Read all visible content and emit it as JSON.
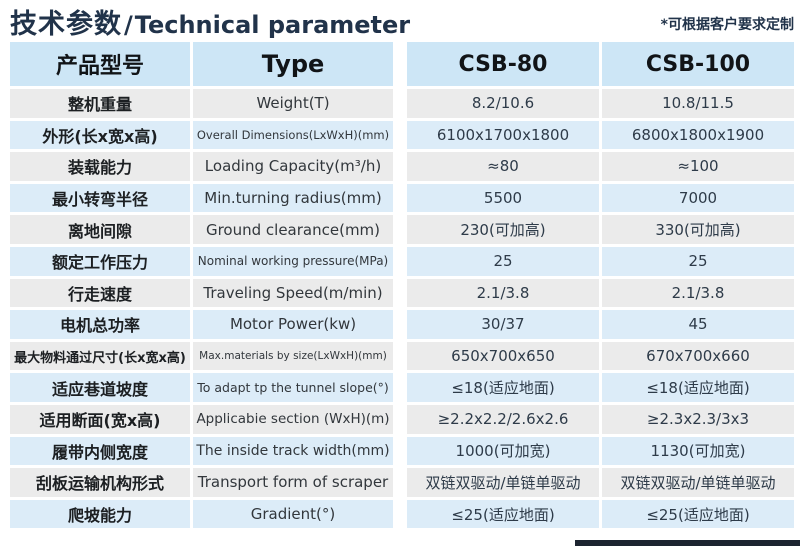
{
  "title": {
    "zh": "技术参数",
    "sep": "/",
    "en": "Technical parameter"
  },
  "note": "*可根据客户要求定制",
  "table": {
    "header": {
      "model_zh": "产品型号",
      "type": "Type",
      "model_a": "CSB-80",
      "model_b": "CSB-100"
    },
    "rows": [
      {
        "zh": "整机重量",
        "en": "Weight(T)",
        "csb80": "8.2/10.6",
        "csb100": "10.8/11.5"
      },
      {
        "zh": "外形(长x宽x高)",
        "en": "Overall Dimensions(LxWxH)(mm)",
        "csb80": "6100x1700x1800",
        "csb100": "6800x1800x1900"
      },
      {
        "zh": "装载能力",
        "en": "Loading Capacity(m³/h)",
        "csb80": "≈80",
        "csb100": "≈100"
      },
      {
        "zh": "最小转弯半径",
        "en": "Min.turning radius(mm)",
        "csb80": "5500",
        "csb100": "7000"
      },
      {
        "zh": "离地间隙",
        "en": "Ground clearance(mm)",
        "csb80": "230(可加高)",
        "csb100": "330(可加高)"
      },
      {
        "zh": "额定工作压力",
        "en": "Nominal working pressure(MPa)",
        "csb80": "25",
        "csb100": "25"
      },
      {
        "zh": "行走速度",
        "en": "Traveling Speed(m/min)",
        "csb80": "2.1/3.8",
        "csb100": "2.1/3.8"
      },
      {
        "zh": "电机总功率",
        "en": "Motor Power(kw)",
        "csb80": "30/37",
        "csb100": "45"
      },
      {
        "zh": "最大物料通过尺寸(长x宽x高)",
        "en": "Max.materials by size(LxWxH)(mm)",
        "csb80": "650x700x650",
        "csb100": "670x700x660"
      },
      {
        "zh": "适应巷道坡度",
        "en": "To adapt tp the tunnel slope(°)",
        "csb80": "≤18(适应地面)",
        "csb100": "≤18(适应地面)"
      },
      {
        "zh": "适用断面(宽x高)",
        "en": "Applicabie section (WxH)(m)",
        "csb80": "≥2.2x2.2/2.6x2.6",
        "csb100": "≥2.3x2.3/3x3"
      },
      {
        "zh": "履带内侧宽度",
        "en": "The inside track width(mm)",
        "csb80": "1000(可加宽)",
        "csb100": "1130(可加宽)"
      },
      {
        "zh": "刮板运输机构形式",
        "en": "Transport form of scraper",
        "csb80": "双链双驱动/单链单驱动",
        "csb100": "双链双驱动/单链单驱动"
      },
      {
        "zh": "爬坡能力",
        "en": "Gradient(°)",
        "csb80": "≤25(适应地面)",
        "csb100": "≤25(适应地面)"
      }
    ]
  },
  "colors": {
    "title_color": "#21334a",
    "header_bg": "#cde6f6",
    "row_gray": "#ebebeb",
    "row_blue": "#dcecf8",
    "bar_color": "#1c2430"
  }
}
